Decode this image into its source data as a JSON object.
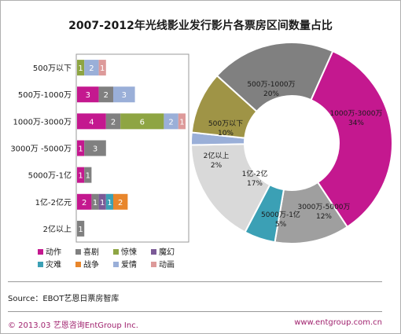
{
  "title": "2007-2012年光线影业发行影片各票房区间数量占比",
  "source": "Source：EBOT艺恩日票房智库",
  "footer_left": "© 2013.03 艺恩咨询EntGroup Inc.",
  "footer_right": "www.entgroup.com.cn",
  "legend": [
    {
      "name": "动作",
      "color": "#c4188f"
    },
    {
      "name": "喜剧",
      "color": "#808080"
    },
    {
      "name": "惊悚",
      "color": "#8ea543"
    },
    {
      "name": "魔幻",
      "color": "#7b5a97"
    },
    {
      "name": "灾难",
      "color": "#3ba0b5"
    },
    {
      "name": "战争",
      "color": "#e8862c"
    },
    {
      "name": "爱情",
      "color": "#9aafd8"
    },
    {
      "name": "动画",
      "color": "#dd9a9a"
    }
  ],
  "chart_data": [
    {
      "type": "bar",
      "orientation": "horizontal",
      "stacked": true,
      "categories": [
        "500万以下",
        "500万-1000万",
        "1000万-3000万",
        "3000万 -5000万",
        "5000万-1亿",
        "1亿-2亿元",
        "2亿以上"
      ],
      "series": [
        {
          "name": "动作",
          "values": [
            0,
            3,
            4,
            1,
            1,
            2,
            0
          ]
        },
        {
          "name": "喜剧",
          "values": [
            0,
            2,
            2,
            3,
            1,
            1,
            1
          ]
        },
        {
          "name": "惊悚",
          "values": [
            1,
            0,
            6,
            0,
            0,
            0,
            0
          ]
        },
        {
          "name": "魔幻",
          "values": [
            0,
            0,
            0,
            0,
            0,
            1,
            0
          ]
        },
        {
          "name": "灾难",
          "values": [
            0,
            0,
            0,
            0,
            0,
            1,
            0
          ]
        },
        {
          "name": "战争",
          "values": [
            0,
            0,
            0,
            0,
            0,
            2,
            0
          ]
        },
        {
          "name": "爱情",
          "values": [
            2,
            3,
            2,
            0,
            0,
            0,
            0
          ]
        },
        {
          "name": "动画",
          "values": [
            1,
            0,
            1,
            0,
            0,
            0,
            0
          ]
        }
      ]
    },
    {
      "type": "pie",
      "style": "donut",
      "labels": [
        "1000万-3000万",
        "3000万-5000万",
        "5000万-1亿",
        "1亿-2亿",
        "2亿以上",
        "500万以下",
        "500万-1000万"
      ],
      "values": [
        34,
        12,
        5,
        17,
        2,
        10,
        20
      ],
      "value_labels": [
        "34%",
        "12%",
        "5%",
        "17%",
        "2%",
        "10%",
        "20%"
      ],
      "colors": [
        "#c4188f",
        "#9f9f9f",
        "#3ba0b5",
        "#d9d9d9",
        "#9aafd8",
        "#9f9446",
        "#808080"
      ]
    }
  ]
}
